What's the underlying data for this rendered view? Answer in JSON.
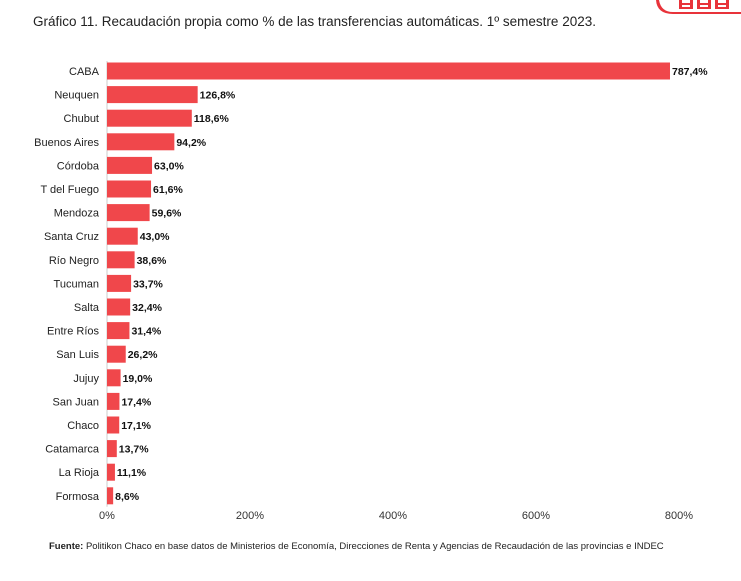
{
  "title": "Gráfico 11. Recaudación propia como % de las transferencias automáticas.  1º semestre 2023.",
  "logo": {
    "icon": "brand-logo-icon",
    "color": "#e8333a"
  },
  "source": {
    "label": "Fuente:",
    "text": " Politikon Chaco en base datos de Ministerios de Economía, Direcciones de Renta y Agencias de Recaudación de las provincias e INDEC"
  },
  "colors": {
    "bar": "#f0474b",
    "axis": "#cccccc"
  },
  "chart_data": {
    "type": "bar",
    "orientation": "horizontal",
    "title": "Gráfico 11. Recaudación propia como % de las transferencias automáticas.  1º semestre 2023.",
    "xlabel": "",
    "ylabel": "",
    "xlim": [
      0,
      800
    ],
    "grid": false,
    "legend": "none",
    "ticks": [
      {
        "value": 0,
        "label": "0%"
      },
      {
        "value": 200,
        "label": "200%"
      },
      {
        "value": 400,
        "label": "400%"
      },
      {
        "value": 600,
        "label": "600%"
      },
      {
        "value": 800,
        "label": "800%"
      }
    ],
    "categories": [
      "CABA",
      "Neuquen",
      "Chubut",
      "Buenos Aires",
      "Córdoba",
      "T del Fuego",
      "Mendoza",
      "Santa Cruz",
      "Río Negro",
      "Tucuman",
      "Salta",
      "Entre Ríos",
      "San Luis",
      "Jujuy",
      "San Juan",
      "Chaco",
      "Catamarca",
      "La Rioja",
      "Formosa"
    ],
    "values": [
      787.4,
      126.8,
      118.6,
      94.2,
      63.0,
      61.6,
      59.6,
      43.0,
      38.6,
      33.7,
      32.4,
      31.4,
      26.2,
      19.0,
      17.4,
      17.1,
      13.7,
      11.1,
      8.6
    ],
    "value_labels": [
      "787,4%",
      "126,8%",
      "118,6%",
      "94,2%",
      "63,0%",
      "61,6%",
      "59,6%",
      "43,0%",
      "38,6%",
      "33,7%",
      "32,4%",
      "31,4%",
      "26,2%",
      "19,0%",
      "17,4%",
      "17,1%",
      "13,7%",
      "11,1%",
      "8,6%"
    ]
  }
}
